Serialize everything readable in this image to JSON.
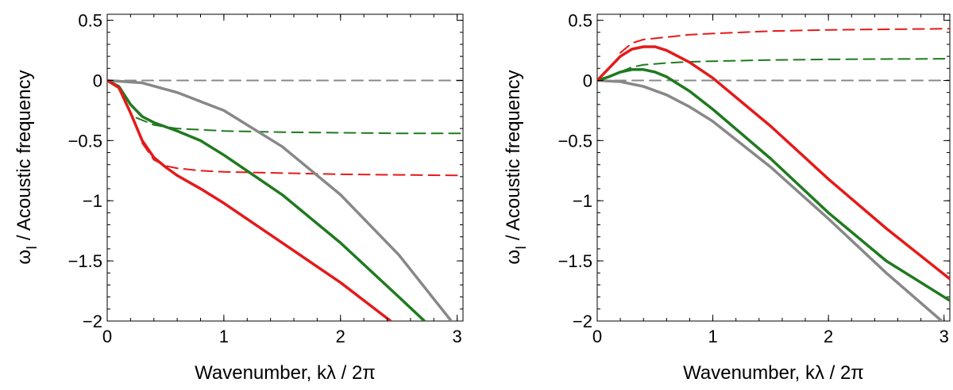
{
  "chart_data": [
    {
      "type": "line",
      "panel": "left",
      "xlabel": "Wavenumber, kλ / 2π",
      "ylabel_symbol": "ω",
      "ylabel_sub": "I",
      "ylabel_rest": " / Acoustic frequency",
      "xlim": [
        0,
        3.05
      ],
      "ylim": [
        -2,
        0.55
      ],
      "xticks": [
        0,
        1,
        2,
        3
      ],
      "xtick_labels": [
        "0",
        "1",
        "2",
        "3"
      ],
      "yticks": [
        0.5,
        0,
        -0.5,
        -1,
        -1.5,
        -2
      ],
      "ytick_labels": [
        "0.5",
        "0",
        "−0.5",
        "−1",
        "−1.5",
        "−2"
      ],
      "grid": false,
      "series": [
        {
          "color": "#888888",
          "dash": "dashed",
          "x": [
            0,
            3.05
          ],
          "y": [
            0,
            0
          ]
        },
        {
          "color": "#1f7a1f",
          "dash": "dashed",
          "x": [
            0.25,
            0.4,
            0.6,
            0.8,
            1.0,
            1.5,
            2.0,
            2.5,
            3.05
          ],
          "y": [
            -0.31,
            -0.37,
            -0.4,
            -0.41,
            -0.42,
            -0.43,
            -0.435,
            -0.44,
            -0.44
          ]
        },
        {
          "color": "#e41a1a",
          "dash": "dashed",
          "x": [
            0.3,
            0.4,
            0.5,
            0.6,
            0.8,
            1.0,
            1.5,
            2.0,
            2.5,
            3.05
          ],
          "y": [
            -0.52,
            -0.66,
            -0.71,
            -0.73,
            -0.75,
            -0.76,
            -0.77,
            -0.78,
            -0.785,
            -0.79
          ]
        },
        {
          "color": "#888888",
          "dash": "solid",
          "x": [
            0,
            0.3,
            0.6,
            1.0,
            1.5,
            2.0,
            2.5,
            2.95
          ],
          "y": [
            0,
            -0.02,
            -0.1,
            -0.25,
            -0.55,
            -0.95,
            -1.45,
            -2.0
          ]
        },
        {
          "color": "#1f7a1f",
          "dash": "solid",
          "x": [
            0,
            0.1,
            0.2,
            0.3,
            0.4,
            0.6,
            0.8,
            1.0,
            1.5,
            2.0,
            2.5,
            2.72
          ],
          "y": [
            0,
            -0.05,
            -0.2,
            -0.3,
            -0.35,
            -0.42,
            -0.5,
            -0.62,
            -0.95,
            -1.35,
            -1.8,
            -2.0
          ]
        },
        {
          "color": "#e41a1a",
          "dash": "solid",
          "x": [
            0,
            0.1,
            0.2,
            0.3,
            0.4,
            0.5,
            0.6,
            0.8,
            1.0,
            1.5,
            2.0,
            2.43
          ],
          "y": [
            0,
            -0.06,
            -0.27,
            -0.5,
            -0.64,
            -0.72,
            -0.79,
            -0.9,
            -1.02,
            -1.35,
            -1.68,
            -2.0
          ]
        }
      ]
    },
    {
      "type": "line",
      "panel": "right",
      "xlabel": "Wavenumber, kλ / 2π",
      "ylabel_symbol": "ω",
      "ylabel_sub": "I",
      "ylabel_rest": " / Acoustic frequency",
      "xlim": [
        0,
        3.05
      ],
      "ylim": [
        -2,
        0.55
      ],
      "xticks": [
        0,
        1,
        2,
        3
      ],
      "xtick_labels": [
        "0",
        "1",
        "2",
        "3"
      ],
      "yticks": [
        0.5,
        0,
        -0.5,
        -1,
        -1.5,
        -2
      ],
      "ytick_labels": [
        "0.5",
        "0",
        "−0.5",
        "−1",
        "−1.5",
        "−2"
      ],
      "grid": false,
      "series": [
        {
          "color": "#888888",
          "dash": "dashed",
          "x": [
            0,
            3.05
          ],
          "y": [
            0,
            0
          ]
        },
        {
          "color": "#e41a1a",
          "dash": "dashed",
          "x": [
            0.2,
            0.3,
            0.4,
            0.6,
            0.8,
            1.0,
            1.5,
            2.0,
            2.5,
            3.05
          ],
          "y": [
            0.23,
            0.31,
            0.34,
            0.36,
            0.38,
            0.39,
            0.41,
            0.42,
            0.425,
            0.43
          ]
        },
        {
          "color": "#1f7a1f",
          "dash": "dashed",
          "x": [
            0.2,
            0.3,
            0.4,
            0.6,
            0.8,
            1.0,
            1.5,
            2.0,
            2.5,
            3.05
          ],
          "y": [
            0.07,
            0.11,
            0.13,
            0.145,
            0.155,
            0.16,
            0.17,
            0.175,
            0.178,
            0.18
          ]
        },
        {
          "color": "#888888",
          "dash": "solid",
          "x": [
            0,
            0.2,
            0.4,
            0.6,
            0.8,
            1.0,
            1.5,
            2.0,
            2.5,
            2.98
          ],
          "y": [
            0,
            -0.01,
            -0.05,
            -0.12,
            -0.22,
            -0.34,
            -0.72,
            -1.15,
            -1.6,
            -2.0
          ]
        },
        {
          "color": "#1f7a1f",
          "dash": "solid",
          "x": [
            0,
            0.1,
            0.2,
            0.3,
            0.4,
            0.5,
            0.6,
            0.8,
            1.0,
            1.5,
            2.0,
            2.5,
            3.05
          ],
          "y": [
            0,
            0.03,
            0.07,
            0.09,
            0.09,
            0.07,
            0.03,
            -0.09,
            -0.24,
            -0.65,
            -1.1,
            -1.5,
            -1.83
          ]
        },
        {
          "color": "#e41a1a",
          "dash": "solid",
          "x": [
            0,
            0.1,
            0.2,
            0.3,
            0.4,
            0.5,
            0.6,
            0.8,
            1.0,
            1.5,
            2.0,
            2.5,
            3.05
          ],
          "y": [
            0,
            0.1,
            0.2,
            0.26,
            0.28,
            0.28,
            0.25,
            0.15,
            0.02,
            -0.38,
            -0.82,
            -1.23,
            -1.65
          ]
        }
      ]
    }
  ]
}
